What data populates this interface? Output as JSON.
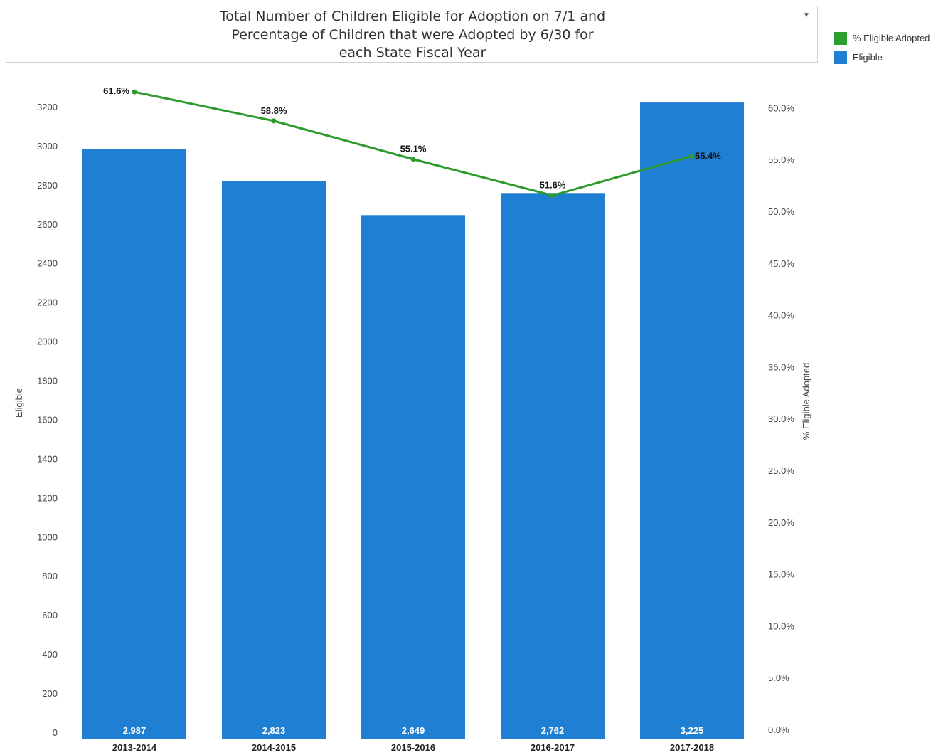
{
  "title_lines": [
    "Total Number of Children Eligible for Adoption on 7/1 and",
    "Percentage of Children that were Adopted by 6/30 for",
    "each State Fiscal Year"
  ],
  "dropdown_icon": "chevron-down-icon",
  "legend": [
    {
      "label": "% Eligible Adopted",
      "color": "#2ca02c"
    },
    {
      "label": "Eligible",
      "color": "#1f7fd2"
    }
  ],
  "chart_data": {
    "type": "bar",
    "title": "Total Number of Children Eligible for Adoption on 7/1 and Percentage of Children that were Adopted by 6/30 for each State Fiscal Year",
    "categories": [
      "2013-2014",
      "2014-2015",
      "2015-2016",
      "2016-2017",
      "2017-2018"
    ],
    "series": [
      {
        "name": "Eligible",
        "type": "bar",
        "axis": "left",
        "color": "#1f7fd2",
        "values": [
          2987,
          2823,
          2649,
          2762,
          3225
        ],
        "labels": [
          "2,987",
          "2,823",
          "2,649",
          "2,762",
          "3,225"
        ]
      },
      {
        "name": "% Eligible Adopted",
        "type": "line",
        "axis": "right",
        "color": "#2e9a2e",
        "values": [
          61.6,
          58.8,
          55.1,
          51.6,
          55.4
        ],
        "labels": [
          "61.6%",
          "58.8%",
          "55.1%",
          "51.6%",
          "55.4%"
        ]
      }
    ],
    "ylabel": "Eligible",
    "ylim": [
      0,
      3300
    ],
    "yticks": [
      "0",
      "200",
      "400",
      "600",
      "800",
      "1000",
      "1200",
      "1400",
      "1600",
      "1800",
      "2000",
      "2200",
      "2400",
      "2600",
      "2800",
      "3000",
      "3200"
    ],
    "y2label": "% Eligible Adopted",
    "y2lim": [
      0,
      62
    ],
    "y2ticks": [
      "0.0%",
      "5.0%",
      "10.0%",
      "15.0%",
      "20.0%",
      "25.0%",
      "30.0%",
      "35.0%",
      "40.0%",
      "45.0%",
      "50.0%",
      "55.0%",
      "60.0%"
    ],
    "legend_position": "right",
    "grid": false
  }
}
